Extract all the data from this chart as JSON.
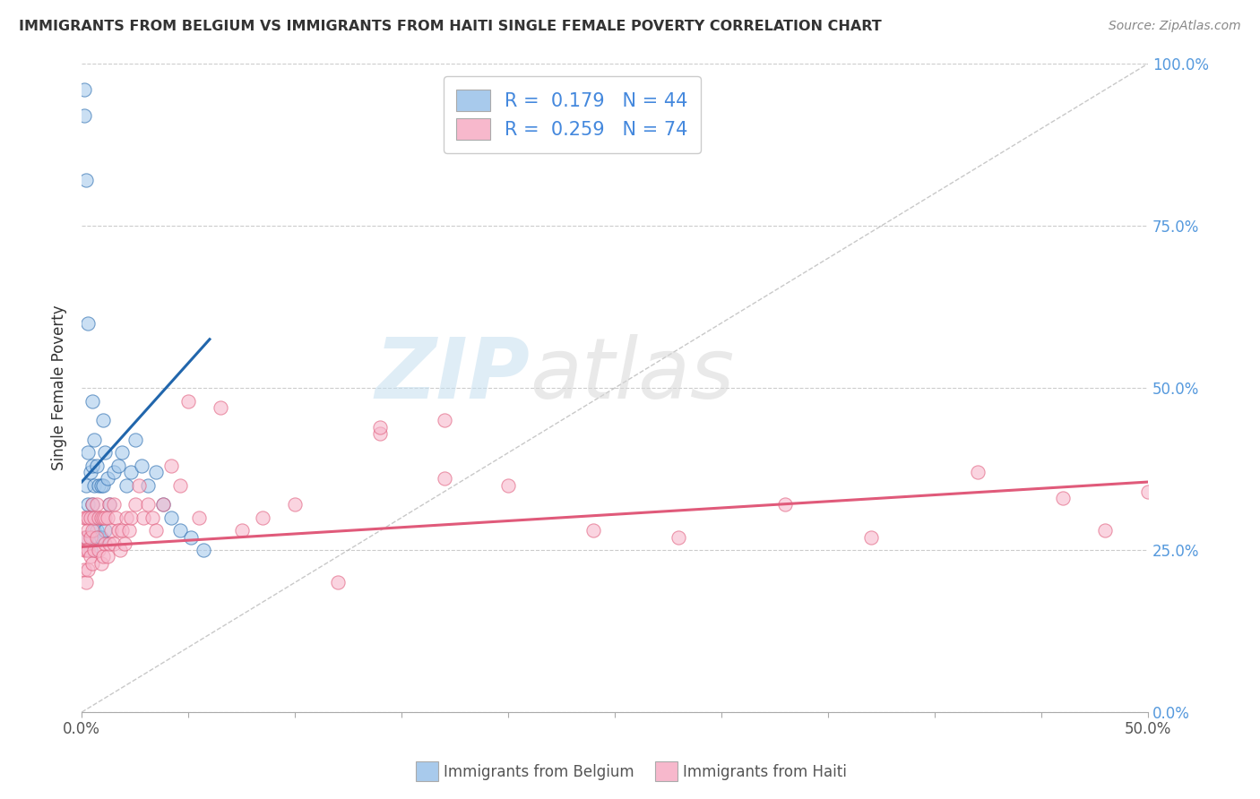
{
  "title": "IMMIGRANTS FROM BELGIUM VS IMMIGRANTS FROM HAITI SINGLE FEMALE POVERTY CORRELATION CHART",
  "source": "Source: ZipAtlas.com",
  "ylabel_label": "Single Female Poverty",
  "xlim": [
    0.0,
    0.5
  ],
  "ylim": [
    0.0,
    1.0
  ],
  "yticks_right": [
    0.0,
    0.25,
    0.5,
    0.75,
    1.0
  ],
  "yticklabels_right": [
    "0.0%",
    "25.0%",
    "50.0%",
    "75.0%",
    "100.0%"
  ],
  "legend_R1": "0.179",
  "legend_N1": "44",
  "legend_R2": "0.259",
  "legend_N2": "74",
  "color_belgium": "#a8caec",
  "color_haiti": "#f7b8cc",
  "color_belgium_line": "#2166ac",
  "color_haiti_line": "#e05a7a",
  "color_diag": "#bbbbbb",
  "watermark_zip": "ZIP",
  "watermark_atlas": "atlas",
  "bel_x": [
    0.001,
    0.001,
    0.002,
    0.002,
    0.002,
    0.003,
    0.003,
    0.003,
    0.004,
    0.004,
    0.004,
    0.005,
    0.005,
    0.005,
    0.005,
    0.006,
    0.006,
    0.006,
    0.007,
    0.007,
    0.008,
    0.008,
    0.009,
    0.009,
    0.01,
    0.01,
    0.011,
    0.011,
    0.012,
    0.013,
    0.015,
    0.017,
    0.019,
    0.021,
    0.023,
    0.025,
    0.028,
    0.031,
    0.035,
    0.038,
    0.042,
    0.046,
    0.051,
    0.057
  ],
  "bel_y": [
    0.96,
    0.92,
    0.82,
    0.35,
    0.27,
    0.6,
    0.4,
    0.32,
    0.37,
    0.3,
    0.25,
    0.48,
    0.38,
    0.32,
    0.27,
    0.42,
    0.35,
    0.28,
    0.38,
    0.28,
    0.35,
    0.27,
    0.35,
    0.27,
    0.45,
    0.35,
    0.4,
    0.28,
    0.36,
    0.32,
    0.37,
    0.38,
    0.4,
    0.35,
    0.37,
    0.42,
    0.38,
    0.35,
    0.37,
    0.32,
    0.3,
    0.28,
    0.27,
    0.25
  ],
  "hai_x": [
    0.001,
    0.001,
    0.001,
    0.001,
    0.002,
    0.002,
    0.002,
    0.002,
    0.003,
    0.003,
    0.003,
    0.003,
    0.004,
    0.004,
    0.004,
    0.005,
    0.005,
    0.005,
    0.006,
    0.006,
    0.007,
    0.007,
    0.008,
    0.008,
    0.009,
    0.009,
    0.01,
    0.01,
    0.011,
    0.011,
    0.012,
    0.012,
    0.013,
    0.013,
    0.014,
    0.015,
    0.015,
    0.016,
    0.017,
    0.018,
    0.019,
    0.02,
    0.021,
    0.022,
    0.023,
    0.025,
    0.027,
    0.029,
    0.031,
    0.033,
    0.035,
    0.038,
    0.042,
    0.046,
    0.05,
    0.055,
    0.065,
    0.075,
    0.085,
    0.1,
    0.12,
    0.14,
    0.17,
    0.2,
    0.24,
    0.28,
    0.33,
    0.37,
    0.42,
    0.46,
    0.48,
    0.5,
    0.14,
    0.17
  ],
  "hai_y": [
    0.3,
    0.27,
    0.25,
    0.22,
    0.3,
    0.27,
    0.25,
    0.2,
    0.3,
    0.28,
    0.25,
    0.22,
    0.3,
    0.27,
    0.24,
    0.32,
    0.28,
    0.23,
    0.3,
    0.25,
    0.32,
    0.27,
    0.3,
    0.25,
    0.3,
    0.23,
    0.3,
    0.24,
    0.3,
    0.26,
    0.3,
    0.24,
    0.32,
    0.26,
    0.28,
    0.32,
    0.26,
    0.3,
    0.28,
    0.25,
    0.28,
    0.26,
    0.3,
    0.28,
    0.3,
    0.32,
    0.35,
    0.3,
    0.32,
    0.3,
    0.28,
    0.32,
    0.38,
    0.35,
    0.48,
    0.3,
    0.47,
    0.28,
    0.3,
    0.32,
    0.2,
    0.43,
    0.36,
    0.35,
    0.28,
    0.27,
    0.32,
    0.27,
    0.37,
    0.33,
    0.28,
    0.34,
    0.44,
    0.45
  ],
  "bel_trend_x": [
    0.0,
    0.06
  ],
  "bel_trend_y": [
    0.355,
    0.575
  ],
  "hai_trend_x": [
    0.0,
    0.5
  ],
  "hai_trend_y": [
    0.255,
    0.355
  ]
}
